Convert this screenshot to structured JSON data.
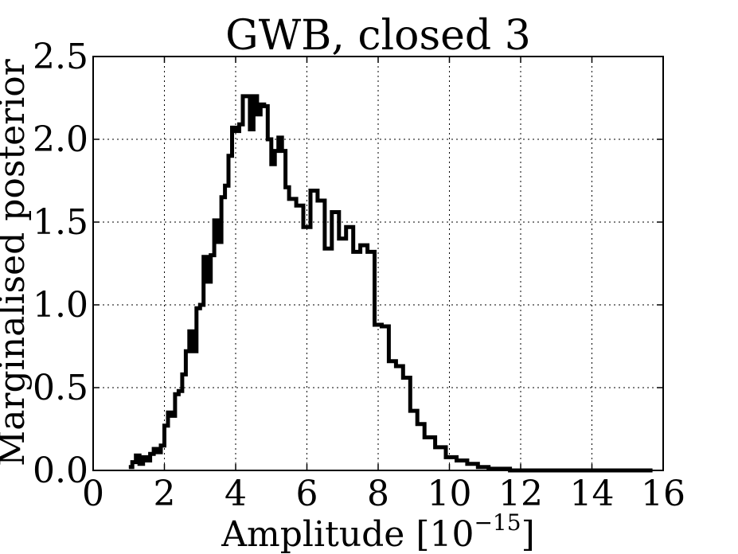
{
  "chart_data": {
    "type": "line",
    "drawstyle": "steps",
    "title": "GWB, closed 3",
    "xlabel": "Amplitude",
    "xlabel_unit_base": "[10",
    "xlabel_unit_exp": "−15",
    "xlabel_unit_close": "]",
    "ylabel": "Marginalised posterior",
    "xlim": [
      0,
      16
    ],
    "ylim": [
      0.0,
      2.5
    ],
    "xticks": [
      "0",
      "2",
      "4",
      "6",
      "8",
      "10",
      "12",
      "14",
      "16"
    ],
    "yticks": [
      "0.0",
      "0.5",
      "1.0",
      "1.5",
      "2.0",
      "2.5"
    ],
    "grid": true,
    "line_color": "#000000",
    "series": [
      {
        "x": [
          1.0,
          1.1,
          1.2,
          1.3,
          1.4,
          1.5,
          1.6,
          1.7,
          1.8,
          1.9,
          2.0,
          2.1,
          2.2,
          2.3,
          2.4,
          2.5,
          2.6,
          2.7,
          2.8,
          2.9,
          3.0,
          3.1,
          3.2,
          3.3,
          3.4,
          3.5,
          3.6,
          3.7,
          3.8,
          3.9,
          4.0,
          4.1,
          4.2,
          4.3,
          4.4,
          4.5,
          4.6,
          4.7,
          4.8,
          4.9,
          5.0,
          5.1,
          5.2,
          5.3,
          5.4,
          5.5,
          5.7,
          5.9,
          6.1,
          6.3,
          6.5,
          6.7,
          6.9,
          7.1,
          7.3,
          7.5,
          7.7,
          7.9,
          8.1,
          8.3,
          8.5,
          8.7,
          8.9,
          9.1,
          9.3,
          9.6,
          9.9,
          10.2,
          10.5,
          10.8,
          11.1,
          11.4,
          11.7,
          12.0,
          12.3,
          12.6,
          12.9,
          13.5,
          14.0,
          14.5,
          15.0,
          15.5,
          15.7
        ],
        "y": [
          0.02,
          0.05,
          0.09,
          0.04,
          0.08,
          0.06,
          0.1,
          0.13,
          0.11,
          0.15,
          0.27,
          0.35,
          0.33,
          0.46,
          0.48,
          0.58,
          0.72,
          0.84,
          0.72,
          0.98,
          1.0,
          1.29,
          1.14,
          1.3,
          1.51,
          1.38,
          1.65,
          1.72,
          1.9,
          2.07,
          2.05,
          2.09,
          2.26,
          2.26,
          2.06,
          2.26,
          2.15,
          2.21,
          2.2,
          2.0,
          1.85,
          1.93,
          2.01,
          1.93,
          1.71,
          1.64,
          1.6,
          1.47,
          1.69,
          1.63,
          1.34,
          1.56,
          1.4,
          1.47,
          1.32,
          1.36,
          1.32,
          0.88,
          0.87,
          0.66,
          0.63,
          0.56,
          0.36,
          0.28,
          0.2,
          0.14,
          0.08,
          0.06,
          0.04,
          0.02,
          0.01,
          0.01,
          0.0,
          0.0,
          0.0,
          0.0,
          0.0,
          0.0,
          0.0,
          0.0,
          0.0,
          0.0,
          0.0
        ]
      }
    ]
  }
}
